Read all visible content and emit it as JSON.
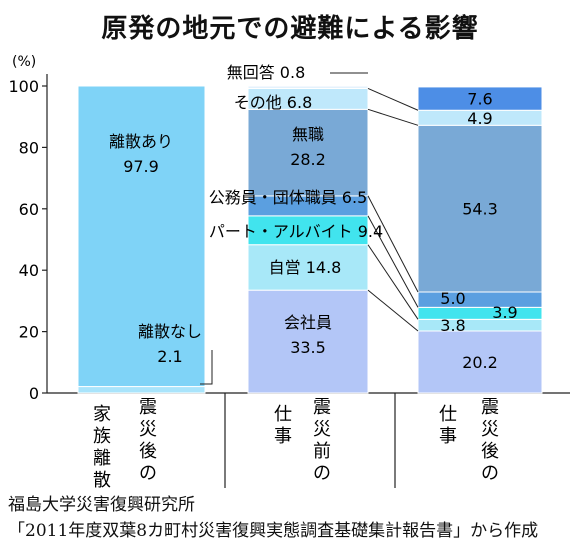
{
  "chart_data": {
    "type": "bar",
    "stacked": true,
    "title": "原発の地元での避難による影響",
    "unit": "(%)",
    "ylim": [
      0,
      100
    ],
    "yticks": [
      0,
      20,
      40,
      60,
      80,
      100
    ],
    "categories": [
      "家族離散 震災後の",
      "仕事 震災前の",
      "仕事 震災後の"
    ],
    "category_lines": [
      [
        "家族離散",
        "震災後の"
      ],
      [
        "仕事",
        "震災前の"
      ],
      [
        "仕事",
        "震災後の"
      ]
    ],
    "bars": [
      [
        {
          "label": "離散なし",
          "value": 2.1,
          "value_text": "2.1",
          "color": "#a9e4fb"
        },
        {
          "label": "離散あり",
          "value": 97.9,
          "value_text": "97.9",
          "color": "#7fd3f7"
        }
      ],
      [
        {
          "label": "会社員",
          "value": 33.5,
          "value_text": "33.5",
          "color": "#b3c6f7"
        },
        {
          "label": "自営",
          "value": 14.8,
          "value_text": "14.8",
          "color": "#a8e8f8"
        },
        {
          "label": "パート・アルバイト",
          "value": 9.4,
          "value_text": "9.4",
          "color": "#41e4ee"
        },
        {
          "label": "公務員・団体職員",
          "value": 6.5,
          "value_text": "6.5",
          "color": "#5b9fe0"
        },
        {
          "label": "無職",
          "value": 28.2,
          "value_text": "28.2",
          "color": "#79a9d6"
        },
        {
          "label": "その他",
          "value": 6.8,
          "value_text": "6.8",
          "color": "#bfe8fb"
        },
        {
          "label": "無回答",
          "value": 0.8,
          "value_text": "0.8",
          "color": "#e4f2fc"
        }
      ],
      [
        {
          "label": "会社員",
          "value": 20.2,
          "value_text": "20.2",
          "color": "#b3c6f7"
        },
        {
          "label": "自営",
          "value": 3.8,
          "value_text": "3.8",
          "color": "#a8e8f8"
        },
        {
          "label": "パート・アルバイト",
          "value": 3.9,
          "value_text": "3.9",
          "color": "#41e4ee"
        },
        {
          "label": "公務員・団体職員",
          "value": 5.0,
          "value_text": "5.0",
          "color": "#5b9fe0"
        },
        {
          "label": "無職",
          "value": 54.3,
          "value_text": "54.3",
          "color": "#79a9d6"
        },
        {
          "label": "その他",
          "value": 4.9,
          "value_text": "4.9",
          "color": "#bfe8fb"
        },
        {
          "label": "無回答",
          "value": 7.6,
          "value_text": "7.6",
          "color": "#4d8ee6"
        }
      ]
    ]
  },
  "source": {
    "line1": "福島大学災害復興研究所",
    "line2": "「2011年度双葉8カ町村災害復興実態調査基礎集計報告書」から作成"
  }
}
